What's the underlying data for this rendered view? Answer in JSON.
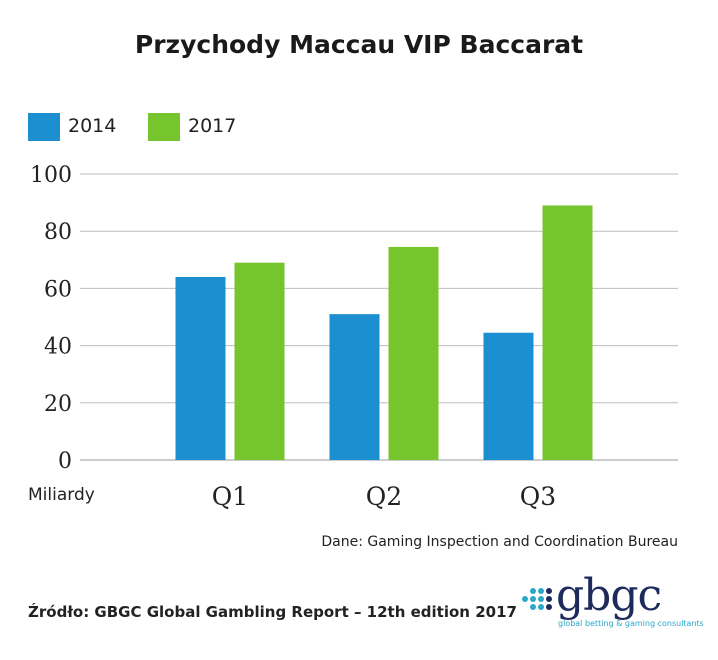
{
  "colors": {
    "series_2014": "#1b8fcf",
    "series_2017": "#76c52d",
    "grid": "#bdbdbd",
    "logo_text": "#1d2a5c",
    "logo_accent": "#2aa7c9"
  },
  "chart_data": {
    "type": "bar",
    "title": "Przychody Maccau VIP Baccarat",
    "categories": [
      "Q1",
      "Q2",
      "Q3"
    ],
    "series": [
      {
        "name": "2014",
        "values": [
          64,
          51,
          44.5
        ]
      },
      {
        "name": "2017",
        "values": [
          69,
          74.5,
          89
        ]
      }
    ],
    "yticks": [
      0,
      20,
      40,
      60,
      80,
      100
    ],
    "ylim": [
      0,
      100
    ],
    "ylabel": "Miliardy",
    "xlabel": "",
    "grid": true,
    "legend": "top-left"
  },
  "notes": {
    "data_source": "Dane: Gaming Inspection and Coordination Bureau",
    "footer_source": "Źródło: GBGC Global Gambling Report – 12th edition 2017"
  },
  "logo": {
    "word": "gbgc",
    "tagline": "global betting & gaming consultants"
  }
}
